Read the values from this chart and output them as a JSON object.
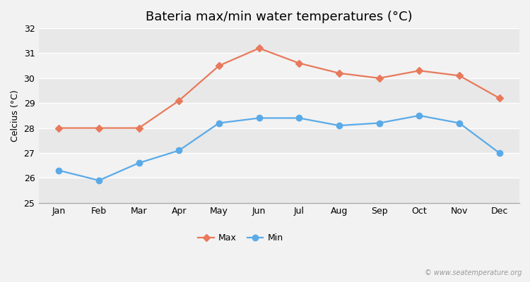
{
  "title": "Bateria max/min water temperatures (°C)",
  "ylabel": "Celcius (°C)",
  "months": [
    "Jan",
    "Feb",
    "Mar",
    "Apr",
    "May",
    "Jun",
    "Jul",
    "Aug",
    "Sep",
    "Oct",
    "Nov",
    "Dec"
  ],
  "max_temps": [
    28.0,
    28.0,
    28.0,
    29.1,
    30.5,
    31.2,
    30.6,
    30.2,
    30.0,
    30.3,
    30.1,
    29.2
  ],
  "min_temps": [
    26.3,
    25.9,
    26.6,
    27.1,
    28.2,
    28.4,
    28.4,
    28.1,
    28.2,
    28.5,
    28.2,
    27.0
  ],
  "max_color": "#e8795a",
  "min_color": "#5aaae8",
  "ylim": [
    25,
    32
  ],
  "yticks": [
    25,
    26,
    27,
    28,
    29,
    30,
    31,
    32
  ],
  "background_color": "#f2f2f2",
  "band_colors": [
    "#e8e8e8",
    "#f2f2f2"
  ],
  "grid_color": "#ffffff",
  "watermark": "© www.seatemperature.org",
  "legend_labels": [
    "Max",
    "Min"
  ],
  "title_fontsize": 13,
  "axis_fontsize": 9,
  "marker_max": "D",
  "marker_min": "o",
  "markersize_max": 5,
  "markersize_min": 6,
  "linewidth": 1.6
}
